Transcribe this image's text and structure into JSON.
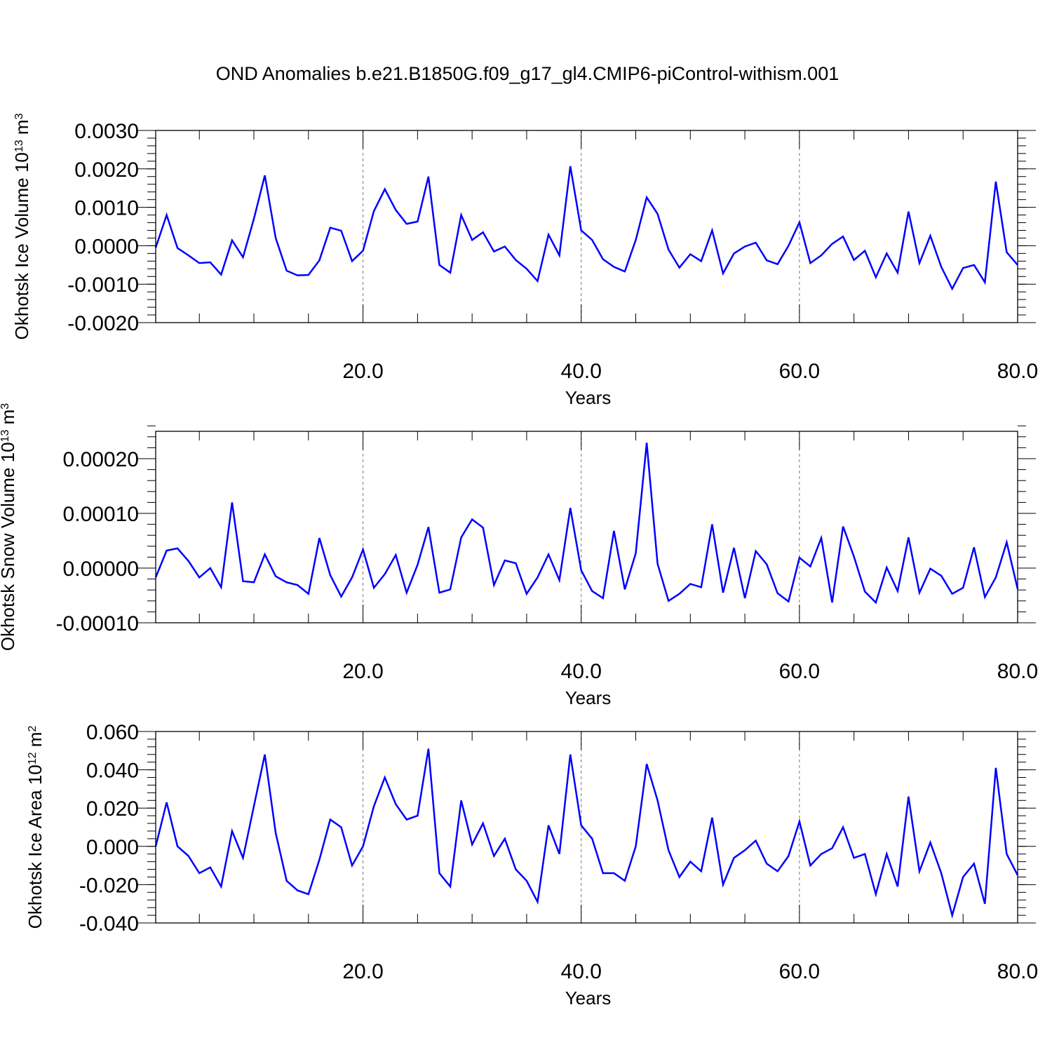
{
  "figure": {
    "title": "OND Anomalies b.e21.B1850G.f09_g17_gl4.CMIP6-piControl-withism.001"
  },
  "colors": {
    "series": "#0000ff",
    "axes": "#000000",
    "grid": "#777777"
  },
  "chart_data": [
    {
      "type": "line",
      "title": "",
      "xlabel": "Years",
      "ylabel": "Okhotsk Ice Volume 10",
      "ylabel_exponent": "13",
      "ylabel_unit": " m",
      "ylabel_unit_exponent": "3",
      "xlim": [
        1,
        80
      ],
      "ylim": [
        -0.002,
        0.003
      ],
      "grid": "vertical dashed at 20, 40, 60",
      "xticks": [
        20,
        40,
        60,
        80
      ],
      "xtick_labels": [
        "20.0",
        "40.0",
        "60.0",
        "80.0"
      ],
      "yticks": [
        -0.002,
        -0.001,
        0.0,
        0.001,
        0.002,
        0.003
      ],
      "ytick_labels": [
        "-0.0020",
        "-0.0010",
        "0.0000",
        "0.0010",
        "0.0020",
        "0.0030"
      ],
      "series": [
        {
          "color": "#0000ff",
          "values": [
            -5e-05,
            0.0008,
            -6e-05,
            -0.00025,
            -0.00045,
            -0.00043,
            -0.00075,
            0.00014,
            -0.0003,
            0.0007,
            0.00183,
            0.0002,
            -0.00065,
            -0.00077,
            -0.00076,
            -0.00038,
            0.00047,
            0.00039,
            -0.0004,
            -0.00013,
            0.0009,
            0.00147,
            0.00093,
            0.00057,
            0.00063,
            0.0018,
            -0.0005,
            -0.0007,
            0.0008,
            0.00015,
            0.00035,
            -0.00015,
            -2e-05,
            -0.00037,
            -0.0006,
            -0.00092,
            0.00029,
            -0.00025,
            0.00207,
            0.0004,
            0.00015,
            -0.00035,
            -0.00055,
            -0.00067,
            0.00015,
            0.00126,
            0.00083,
            -0.0001,
            -0.00057,
            -0.00022,
            -0.0004,
            0.0004,
            -0.00072,
            -0.0002,
            -2e-05,
            8e-05,
            -0.00038,
            -0.00048,
            0.0,
            0.00061,
            -0.00045,
            -0.00025,
            5e-05,
            0.00024,
            -0.00037,
            -0.00013,
            -0.00082,
            -0.0002,
            -0.0007,
            0.00089,
            -0.00045,
            0.00026,
            -0.00055,
            -0.00112,
            -0.00058,
            -0.0005,
            -0.00095,
            0.00167,
            -0.00017,
            -0.0005
          ]
        }
      ]
    },
    {
      "type": "line",
      "title": "",
      "xlabel": "Years",
      "ylabel": "Okhotsk Snow Volume 10",
      "ylabel_exponent": "13",
      "ylabel_unit": " m",
      "ylabel_unit_exponent": "3",
      "xlim": [
        1,
        80
      ],
      "ylim": [
        -0.0001,
        0.00025
      ],
      "grid": "vertical dashed at 20, 40, 60",
      "xticks": [
        20,
        40,
        60,
        80
      ],
      "xtick_labels": [
        "20.0",
        "40.0",
        "60.0",
        "80.0"
      ],
      "yticks": [
        -0.0001,
        0.0,
        0.0001,
        0.0002
      ],
      "ytick_labels": [
        "-0.00010",
        "0.00000",
        "0.00010",
        "0.00020"
      ],
      "series": [
        {
          "color": "#0000ff",
          "values": [
            -1.7e-05,
            3.2e-05,
            3.6e-05,
            1.3e-05,
            -1.7e-05,
            0.0,
            -3.5e-05,
            0.00012,
            -2.4e-05,
            -2.6e-05,
            2.5e-05,
            -1.5e-05,
            -2.6e-05,
            -3.1e-05,
            -4.7e-05,
            5.5e-05,
            -1.3e-05,
            -5.2e-05,
            -1.7e-05,
            3.4e-05,
            -3.6e-05,
            -1.1e-05,
            2.4e-05,
            -4.5e-05,
            6e-06,
            7.5e-05,
            -4.5e-05,
            -3.9e-05,
            5.6e-05,
            8.9e-05,
            7.4e-05,
            -3.1e-05,
            1.4e-05,
            9e-06,
            -4.7e-05,
            -1.7e-05,
            2.5e-05,
            -2.2e-05,
            0.00011,
            -4e-06,
            -4.2e-05,
            -5.5e-05,
            6.8e-05,
            -3.9e-05,
            2.7e-05,
            0.000229,
            8e-06,
            -6e-05,
            -4.7e-05,
            -2.9e-05,
            -3.5e-05,
            8e-05,
            -4.5e-05,
            3.7e-05,
            -5.5e-05,
            3.1e-05,
            7e-06,
            -4.6e-05,
            -6.1e-05,
            1.9e-05,
            3e-06,
            5.5e-05,
            -6.3e-05,
            7.6e-05,
            2.1e-05,
            -4.3e-05,
            -6.3e-05,
            1e-06,
            -4.2e-05,
            5.6e-05,
            -4.5e-05,
            -1e-06,
            -1.4e-05,
            -4.7e-05,
            -3.6e-05,
            3.8e-05,
            -5.3e-05,
            -1.7e-05,
            4.7e-05,
            -3.8e-05
          ]
        }
      ]
    },
    {
      "type": "line",
      "title": "",
      "xlabel": "Years",
      "ylabel": "Okhotsk Ice Area 10",
      "ylabel_exponent": "12",
      "ylabel_unit": " m",
      "ylabel_unit_exponent": "2",
      "xlim": [
        1,
        80
      ],
      "ylim": [
        -0.04,
        0.06
      ],
      "grid": "vertical dashed at 20, 40, 60",
      "xticks": [
        20,
        40,
        60,
        80
      ],
      "xtick_labels": [
        "20.0",
        "40.0",
        "60.0",
        "80.0"
      ],
      "yticks": [
        -0.04,
        -0.02,
        0.0,
        0.02,
        0.04,
        0.06
      ],
      "ytick_labels": [
        "-0.040",
        "-0.020",
        "0.000",
        "0.020",
        "0.040",
        "0.060"
      ],
      "series": [
        {
          "color": "#0000ff",
          "values": [
            0.0,
            0.023,
            0.0,
            -0.005,
            -0.014,
            -0.011,
            -0.021,
            0.008,
            -0.006,
            0.021,
            0.048,
            0.007,
            -0.018,
            -0.023,
            -0.025,
            -0.007,
            0.014,
            0.01,
            -0.01,
            0.0,
            0.021,
            0.036,
            0.022,
            0.014,
            0.016,
            0.051,
            -0.014,
            -0.021,
            0.024,
            0.001,
            0.012,
            -0.005,
            0.004,
            -0.012,
            -0.018,
            -0.029,
            0.011,
            -0.004,
            0.048,
            0.011,
            0.004,
            -0.014,
            -0.014,
            -0.018,
            0.0,
            0.043,
            0.024,
            -0.002,
            -0.016,
            -0.008,
            -0.013,
            0.015,
            -0.02,
            -0.006,
            -0.002,
            0.003,
            -0.009,
            -0.013,
            -0.005,
            0.013,
            -0.01,
            -0.004,
            -0.001,
            0.01,
            -0.006,
            -0.004,
            -0.025,
            -0.004,
            -0.021,
            0.026,
            -0.013,
            0.002,
            -0.014,
            -0.036,
            -0.016,
            -0.009,
            -0.03,
            0.041,
            -0.004,
            -0.015
          ]
        }
      ]
    }
  ]
}
